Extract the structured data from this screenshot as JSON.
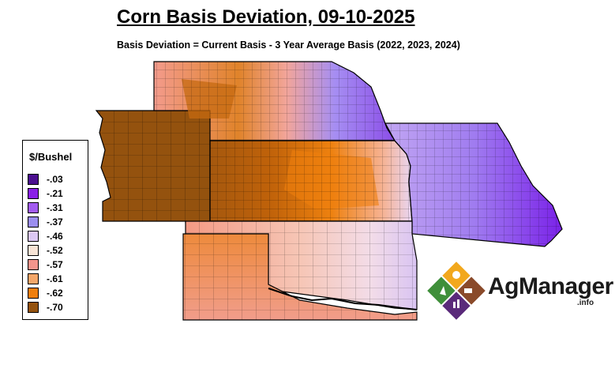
{
  "title": "Corn Basis Deviation, 09-10-2025",
  "subtitle": "Basis Deviation = Current Basis - 3 Year Average Basis (2022, 2023, 2024)",
  "legend": {
    "title": "$/Bushel",
    "items": [
      {
        "label": "-.03",
        "color": "#4b0f8f"
      },
      {
        "label": "-.21",
        "color": "#8a1fe8"
      },
      {
        "label": "-.31",
        "color": "#a35cf0"
      },
      {
        "label": "-.37",
        "color": "#9c8ff0"
      },
      {
        "label": "-.46",
        "color": "#dcc8f4"
      },
      {
        "label": "-.52",
        "color": "#f8e4d6"
      },
      {
        "label": "-.57",
        "color": "#f3958c"
      },
      {
        "label": "-.61",
        "color": "#f4a76a"
      },
      {
        "label": "-.62",
        "color": "#ef7f0e"
      },
      {
        "label": "-.70",
        "color": "#94520e"
      }
    ]
  },
  "logo": {
    "name": "AgManager",
    "suffix": ".info"
  }
}
